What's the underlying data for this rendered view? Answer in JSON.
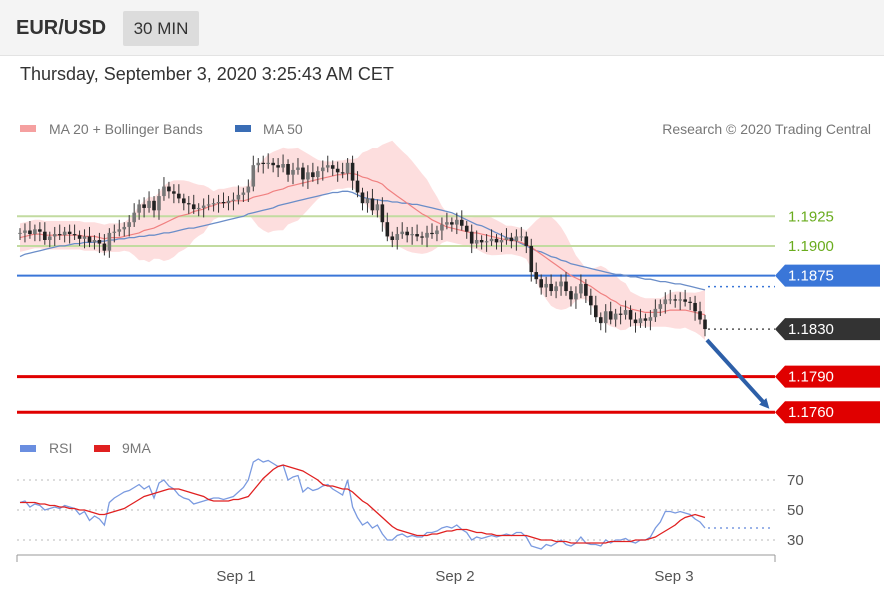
{
  "header": {
    "symbol": "EUR/USD",
    "interval": "30 MIN",
    "datetime": "Thursday, September 3, 2020 3:25:43 AM CET"
  },
  "legend": {
    "ma20": "MA 20 + Bollinger Bands",
    "ma50": "MA 50",
    "credit": "Research © 2020 Trading Central"
  },
  "colors": {
    "ma20": "#f08080",
    "ma50": "#3a6db5",
    "band": "#fdd8d8",
    "support": "#e00000",
    "resistance": "#3a76d8",
    "minor": "#6aac1e",
    "last": "#333333",
    "rsi": "#7a9ae0",
    "rsi_ma": "#e02020"
  },
  "chart_data": [
    {
      "type": "candlestick",
      "x_ticks": [
        "Sep 1",
        "Sep 2",
        "Sep 3"
      ],
      "ylim": [
        1.1745,
        1.1985
      ],
      "last_price": {
        "label": "1.1830",
        "value": 1.183
      },
      "levels": [
        {
          "label": "1.1925",
          "value": 1.1925,
          "kind": "minor"
        },
        {
          "label": "1.1900",
          "value": 1.19,
          "kind": "minor"
        },
        {
          "label": "1.1875",
          "value": 1.1875,
          "kind": "resistance"
        },
        {
          "label": "1.1790",
          "value": 1.179,
          "kind": "support"
        },
        {
          "label": "1.1760",
          "value": 1.176,
          "kind": "support"
        }
      ],
      "close": [
        1.1911,
        1.1913,
        1.191,
        1.1914,
        1.1912,
        1.1905,
        1.1908,
        1.191,
        1.1909,
        1.1912,
        1.191,
        1.1909,
        1.1906,
        1.1908,
        1.1903,
        1.1905,
        1.1902,
        1.1896,
        1.1911,
        1.1912,
        1.1914,
        1.1916,
        1.192,
        1.1928,
        1.1935,
        1.1932,
        1.1938,
        1.193,
        1.1942,
        1.195,
        1.1946,
        1.1944,
        1.194,
        1.1936,
        1.1935,
        1.1931,
        1.1932,
        1.1934,
        1.1935,
        1.1936,
        1.1937,
        1.1936,
        1.1938,
        1.1939,
        1.1943,
        1.1945,
        1.195,
        1.1968,
        1.197,
        1.1969,
        1.197,
        1.1968,
        1.1966,
        1.1969,
        1.196,
        1.1964,
        1.1966,
        1.1956,
        1.1962,
        1.1958,
        1.1963,
        1.1966,
        1.1968,
        1.1965,
        1.1962,
        1.1961,
        1.197,
        1.1955,
        1.1945,
        1.1936,
        1.194,
        1.193,
        1.1935,
        1.192,
        1.1908,
        1.1905,
        1.191,
        1.1912,
        1.1909,
        1.191,
        1.1908,
        1.1907,
        1.1911,
        1.191,
        1.1913,
        1.1918,
        1.192,
        1.1918,
        1.1922,
        1.1917,
        1.1912,
        1.1902,
        1.1905,
        1.1903,
        1.1904,
        1.1906,
        1.1903,
        1.1905,
        1.1907,
        1.1904,
        1.1908,
        1.1908,
        1.19,
        1.1878,
        1.1872,
        1.1865,
        1.1868,
        1.1862,
        1.1866,
        1.187,
        1.1862,
        1.1855,
        1.186,
        1.1868,
        1.1858,
        1.185,
        1.184,
        1.1835,
        1.1845,
        1.1838,
        1.1843,
        1.1842,
        1.1846,
        1.1838,
        1.1835,
        1.1839,
        1.1837,
        1.184,
        1.1847,
        1.1851,
        1.1855,
        1.1855,
        1.1854,
        1.1855,
        1.1853,
        1.1852,
        1.1845,
        1.1838,
        1.183
      ],
      "ma20": [
        1.1907,
        1.1908,
        1.1909,
        1.191,
        1.191,
        1.1909,
        1.1909,
        1.1909,
        1.1909,
        1.1909,
        1.1909,
        1.1909,
        1.1909,
        1.1908,
        1.1908,
        1.1908,
        1.1907,
        1.1906,
        1.1907,
        1.1907,
        1.1907,
        1.1908,
        1.1909,
        1.191,
        1.1911,
        1.1913,
        1.1914,
        1.1915,
        1.1917,
        1.1919,
        1.1921,
        1.1923,
        1.1925,
        1.1926,
        1.1927,
        1.1929,
        1.193,
        1.1931,
        1.1933,
        1.1934,
        1.1936,
        1.1936,
        1.1937,
        1.1938,
        1.1938,
        1.1938,
        1.1939,
        1.1941,
        1.1942,
        1.1943,
        1.1944,
        1.1946,
        1.1947,
        1.1948,
        1.195,
        1.1951,
        1.1952,
        1.1953,
        1.1954,
        1.1955,
        1.1956,
        1.1957,
        1.1958,
        1.1959,
        1.196,
        1.196,
        1.1961,
        1.1961,
        1.196,
        1.1958,
        1.1957,
        1.1955,
        1.1954,
        1.1952,
        1.1948,
        1.1945,
        1.1942,
        1.1939,
        1.1936,
        1.1933,
        1.193,
        1.1927,
        1.1925,
        1.1922,
        1.192,
        1.1918,
        1.1916,
        1.1915,
        1.1914,
        1.1913,
        1.1912,
        1.1911,
        1.1911,
        1.191,
        1.1909,
        1.1908,
        1.1907,
        1.1906,
        1.1905,
        1.1905,
        1.1904,
        1.1903,
        1.1901,
        1.1899,
        1.1896,
        1.1893,
        1.189,
        1.1887,
        1.1884,
        1.1881,
        1.1878,
        1.1875,
        1.1873,
        1.1871,
        1.1868,
        1.1866,
        1.1863,
        1.186,
        1.1858,
        1.1855,
        1.1853,
        1.185,
        1.1849,
        1.1847,
        1.1846,
        1.1845,
        1.1844,
        1.1844,
        1.1844,
        1.1844,
        1.1845,
        1.1846,
        1.1846,
        1.1846,
        1.1846,
        1.1845,
        1.1844,
        1.1843,
        1.1842
      ],
      "ma50": [
        1.1891,
        1.1893,
        1.1894,
        1.1895,
        1.1896,
        1.1897,
        1.1898,
        1.1899,
        1.19,
        1.19,
        1.1901,
        1.1902,
        1.1902,
        1.1903,
        1.1903,
        1.1903,
        1.1904,
        1.1904,
        1.1905,
        1.1905,
        1.1906,
        1.1906,
        1.1907,
        1.1907,
        1.1908,
        1.1908,
        1.1909,
        1.1909,
        1.191,
        1.1911,
        1.1911,
        1.1912,
        1.1913,
        1.1914,
        1.1915,
        1.1915,
        1.1916,
        1.1917,
        1.1918,
        1.1919,
        1.192,
        1.1921,
        1.1922,
        1.1923,
        1.1924,
        1.1925,
        1.1927,
        1.1928,
        1.1929,
        1.193,
        1.1931,
        1.1932,
        1.1934,
        1.1935,
        1.1936,
        1.1937,
        1.1938,
        1.1939,
        1.194,
        1.1941,
        1.1942,
        1.1943,
        1.1944,
        1.1945,
        1.1945,
        1.1946,
        1.1946,
        1.1945,
        1.1943,
        1.1941,
        1.194,
        1.1939,
        1.1939,
        1.1938,
        1.1938,
        1.1937,
        1.1937,
        1.1936,
        1.1936,
        1.1935,
        1.1935,
        1.1934,
        1.1933,
        1.1932,
        1.1931,
        1.193,
        1.1929,
        1.1928,
        1.1926,
        1.1924,
        1.1922,
        1.192,
        1.1918,
        1.1917,
        1.1915,
        1.1913,
        1.1911,
        1.1909,
        1.1907,
        1.1906,
        1.1904,
        1.1902,
        1.19,
        1.1898,
        1.1896,
        1.1895,
        1.1893,
        1.1891,
        1.189,
        1.1888,
        1.1887,
        1.1885,
        1.1884,
        1.1883,
        1.1882,
        1.1881,
        1.188,
        1.1879,
        1.1878,
        1.1877,
        1.1876,
        1.1876,
        1.1875,
        1.1874,
        1.1874,
        1.1873,
        1.1872,
        1.1872,
        1.1871,
        1.187,
        1.187,
        1.1869,
        1.1868,
        1.1868,
        1.1867,
        1.1866,
        1.1865,
        1.1864,
        1.1863
      ]
    },
    {
      "type": "line",
      "ylim": [
        20,
        90
      ],
      "y_ticks": [
        30,
        50,
        70
      ],
      "series": [
        {
          "name": "RSI",
          "values": [
            55,
            56,
            52,
            54,
            53,
            50,
            51,
            52,
            51,
            53,
            52,
            51,
            47,
            49,
            43,
            46,
            44,
            40,
            55,
            58,
            60,
            62,
            63,
            65,
            67,
            64,
            66,
            58,
            68,
            70,
            66,
            64,
            60,
            58,
            57,
            54,
            55,
            56,
            57,
            58,
            58,
            57,
            58,
            59,
            62,
            65,
            70,
            82,
            84,
            82,
            83,
            81,
            79,
            80,
            70,
            72,
            73,
            62,
            65,
            63,
            64,
            66,
            67,
            64,
            62,
            60,
            70,
            52,
            45,
            40,
            42,
            38,
            40,
            34,
            30,
            30,
            33,
            34,
            32,
            33,
            32,
            32,
            35,
            35,
            36,
            38,
            39,
            38,
            40,
            37,
            35,
            30,
            32,
            31,
            32,
            33,
            32,
            33,
            34,
            33,
            35,
            35,
            32,
            26,
            25,
            24,
            27,
            26,
            28,
            30,
            27,
            26,
            28,
            32,
            28,
            27,
            27,
            26,
            30,
            28,
            30,
            30,
            31,
            29,
            28,
            30,
            30,
            32,
            38,
            42,
            49,
            49,
            48,
            49,
            48,
            47,
            44,
            42,
            38
          ]
        },
        {
          "name": "9MA",
          "values": [
            55,
            55,
            55,
            55,
            54,
            54,
            53,
            53,
            52,
            52,
            51,
            51,
            50,
            50,
            49,
            48,
            47,
            47,
            48,
            49,
            50,
            51,
            53,
            55,
            57,
            59,
            60,
            61,
            62,
            63,
            64,
            64,
            64,
            63,
            62,
            61,
            60,
            59,
            57,
            56,
            56,
            56,
            56,
            57,
            57,
            58,
            59,
            63,
            67,
            71,
            74,
            77,
            79,
            80,
            79,
            78,
            77,
            76,
            74,
            72,
            70,
            67,
            66,
            66,
            65,
            64,
            64,
            62,
            59,
            56,
            54,
            51,
            48,
            45,
            42,
            39,
            37,
            36,
            35,
            34,
            33,
            33,
            33,
            34,
            34,
            35,
            36,
            36,
            37,
            37,
            37,
            36,
            35,
            35,
            34,
            34,
            33,
            33,
            33,
            33,
            33,
            33,
            33,
            32,
            31,
            30,
            30,
            30,
            29,
            29,
            29,
            28,
            28,
            28,
            28,
            28,
            28,
            28,
            28,
            29,
            29,
            29,
            29,
            29,
            30,
            30,
            30,
            31,
            32,
            34,
            36,
            38,
            40,
            43,
            45,
            46,
            47,
            46,
            45
          ]
        }
      ]
    }
  ]
}
